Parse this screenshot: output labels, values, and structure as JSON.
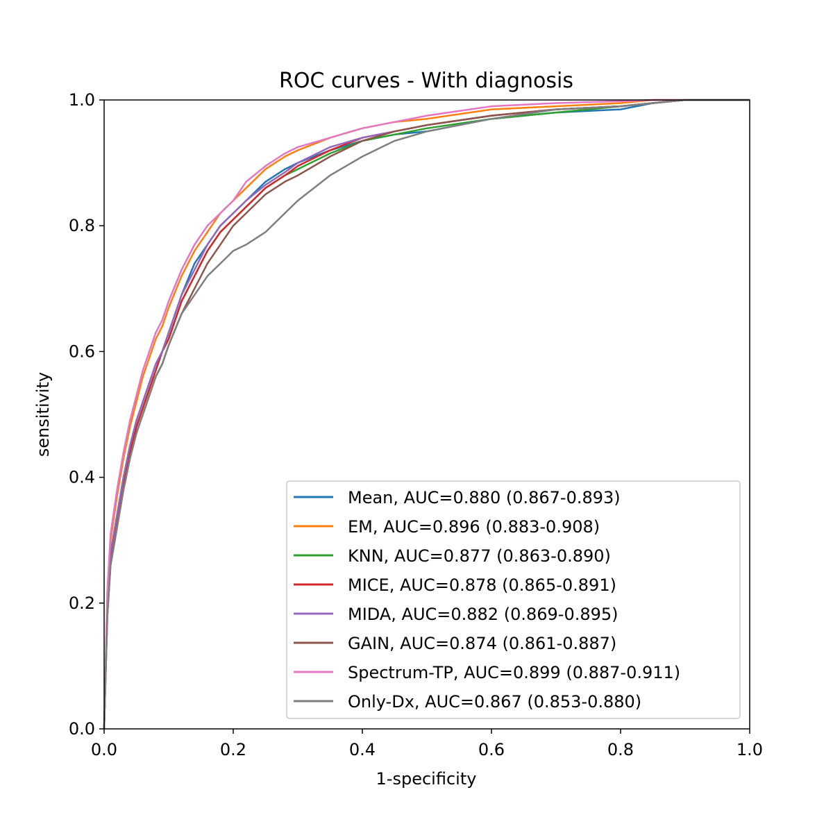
{
  "chart_data": {
    "type": "line",
    "title": "ROC curves - With diagnosis",
    "xlabel": "1-specificity",
    "ylabel": "sensitivity",
    "xlim": [
      0.0,
      1.0
    ],
    "ylim": [
      0.0,
      1.0
    ],
    "xticks": [
      "0.0",
      "0.2",
      "0.4",
      "0.6",
      "0.8",
      "1.0"
    ],
    "yticks": [
      "0.0",
      "0.2",
      "0.4",
      "0.6",
      "0.8",
      "1.0"
    ],
    "grid": false,
    "legend_position": "lower right",
    "series": [
      {
        "name": "Mean, AUC=0.880 (0.867-0.893)",
        "color": "#1f77b4",
        "x": [
          0.0,
          0.005,
          0.01,
          0.02,
          0.03,
          0.04,
          0.05,
          0.06,
          0.07,
          0.08,
          0.09,
          0.1,
          0.12,
          0.14,
          0.16,
          0.18,
          0.2,
          0.22,
          0.25,
          0.28,
          0.3,
          0.35,
          0.4,
          0.45,
          0.5,
          0.6,
          0.7,
          0.8,
          0.85,
          0.9,
          1.0
        ],
        "y": [
          0.0,
          0.2,
          0.28,
          0.34,
          0.4,
          0.45,
          0.49,
          0.52,
          0.55,
          0.58,
          0.6,
          0.63,
          0.69,
          0.74,
          0.77,
          0.8,
          0.82,
          0.84,
          0.87,
          0.89,
          0.9,
          0.92,
          0.935,
          0.945,
          0.95,
          0.97,
          0.98,
          0.985,
          0.995,
          1.0,
          1.0
        ]
      },
      {
        "name": "EM, AUC=0.896 (0.883-0.908)",
        "color": "#ff7f0e",
        "x": [
          0.0,
          0.005,
          0.01,
          0.02,
          0.03,
          0.04,
          0.05,
          0.06,
          0.07,
          0.08,
          0.09,
          0.1,
          0.12,
          0.14,
          0.16,
          0.18,
          0.2,
          0.22,
          0.25,
          0.28,
          0.3,
          0.35,
          0.4,
          0.45,
          0.5,
          0.6,
          0.7,
          0.8,
          0.85,
          0.9,
          1.0
        ],
        "y": [
          0.0,
          0.22,
          0.3,
          0.37,
          0.43,
          0.48,
          0.52,
          0.56,
          0.59,
          0.62,
          0.64,
          0.67,
          0.72,
          0.76,
          0.79,
          0.82,
          0.84,
          0.86,
          0.89,
          0.91,
          0.92,
          0.94,
          0.955,
          0.965,
          0.97,
          0.985,
          0.99,
          0.995,
          1.0,
          1.0,
          1.0
        ]
      },
      {
        "name": "KNN, AUC=0.877 (0.863-0.890)",
        "color": "#2ca02c",
        "x": [
          0.0,
          0.005,
          0.01,
          0.02,
          0.03,
          0.04,
          0.05,
          0.06,
          0.07,
          0.08,
          0.09,
          0.1,
          0.12,
          0.14,
          0.16,
          0.18,
          0.2,
          0.22,
          0.25,
          0.28,
          0.3,
          0.35,
          0.4,
          0.45,
          0.5,
          0.6,
          0.7,
          0.8,
          0.85,
          0.9,
          1.0
        ],
        "y": [
          0.0,
          0.19,
          0.27,
          0.33,
          0.39,
          0.44,
          0.48,
          0.51,
          0.54,
          0.57,
          0.6,
          0.62,
          0.68,
          0.72,
          0.76,
          0.79,
          0.81,
          0.83,
          0.86,
          0.88,
          0.89,
          0.915,
          0.935,
          0.945,
          0.955,
          0.97,
          0.98,
          0.99,
          0.995,
          1.0,
          1.0
        ]
      },
      {
        "name": "MICE, AUC=0.878 (0.865-0.891)",
        "color": "#d62728",
        "x": [
          0.0,
          0.005,
          0.01,
          0.02,
          0.03,
          0.04,
          0.05,
          0.06,
          0.07,
          0.08,
          0.09,
          0.1,
          0.12,
          0.14,
          0.16,
          0.18,
          0.2,
          0.22,
          0.25,
          0.28,
          0.3,
          0.35,
          0.4,
          0.45,
          0.5,
          0.6,
          0.7,
          0.8,
          0.85,
          0.9,
          1.0
        ],
        "y": [
          0.0,
          0.19,
          0.27,
          0.33,
          0.39,
          0.44,
          0.48,
          0.51,
          0.54,
          0.57,
          0.6,
          0.62,
          0.68,
          0.72,
          0.76,
          0.79,
          0.81,
          0.83,
          0.86,
          0.88,
          0.895,
          0.92,
          0.94,
          0.95,
          0.96,
          0.975,
          0.985,
          0.99,
          0.995,
          1.0,
          1.0
        ]
      },
      {
        "name": "MIDA, AUC=0.882 (0.869-0.895)",
        "color": "#9467bd",
        "x": [
          0.0,
          0.005,
          0.01,
          0.02,
          0.03,
          0.04,
          0.05,
          0.06,
          0.07,
          0.08,
          0.09,
          0.1,
          0.12,
          0.14,
          0.16,
          0.18,
          0.2,
          0.22,
          0.25,
          0.28,
          0.3,
          0.35,
          0.4,
          0.45,
          0.5,
          0.6,
          0.7,
          0.8,
          0.85,
          0.9,
          1.0
        ],
        "y": [
          0.0,
          0.2,
          0.28,
          0.34,
          0.4,
          0.45,
          0.49,
          0.52,
          0.55,
          0.58,
          0.6,
          0.63,
          0.69,
          0.73,
          0.77,
          0.8,
          0.82,
          0.84,
          0.865,
          0.885,
          0.9,
          0.925,
          0.94,
          0.95,
          0.96,
          0.975,
          0.985,
          0.99,
          0.995,
          1.0,
          1.0
        ]
      },
      {
        "name": "GAIN, AUC=0.874 (0.861-0.887)",
        "color": "#8c564b",
        "x": [
          0.0,
          0.005,
          0.01,
          0.02,
          0.03,
          0.04,
          0.05,
          0.06,
          0.07,
          0.08,
          0.09,
          0.1,
          0.12,
          0.14,
          0.16,
          0.18,
          0.2,
          0.22,
          0.25,
          0.28,
          0.3,
          0.35,
          0.4,
          0.45,
          0.5,
          0.6,
          0.7,
          0.8,
          0.85,
          0.9,
          1.0
        ],
        "y": [
          0.0,
          0.18,
          0.26,
          0.32,
          0.38,
          0.43,
          0.47,
          0.5,
          0.53,
          0.56,
          0.58,
          0.61,
          0.66,
          0.7,
          0.74,
          0.77,
          0.8,
          0.82,
          0.85,
          0.87,
          0.88,
          0.91,
          0.935,
          0.95,
          0.96,
          0.975,
          0.985,
          0.99,
          0.995,
          1.0,
          1.0
        ]
      },
      {
        "name": "Spectrum-TP, AUC=0.899 (0.887-0.911)",
        "color": "#e377c2",
        "x": [
          0.0,
          0.005,
          0.01,
          0.02,
          0.03,
          0.04,
          0.05,
          0.06,
          0.07,
          0.08,
          0.09,
          0.1,
          0.12,
          0.14,
          0.16,
          0.18,
          0.2,
          0.22,
          0.25,
          0.28,
          0.3,
          0.35,
          0.4,
          0.45,
          0.5,
          0.6,
          0.7,
          0.8,
          0.85,
          0.9,
          1.0
        ],
        "y": [
          0.0,
          0.22,
          0.31,
          0.38,
          0.44,
          0.49,
          0.53,
          0.57,
          0.6,
          0.63,
          0.65,
          0.68,
          0.73,
          0.77,
          0.8,
          0.82,
          0.84,
          0.87,
          0.895,
          0.915,
          0.925,
          0.94,
          0.955,
          0.965,
          0.975,
          0.99,
          0.995,
          0.998,
          1.0,
          1.0,
          1.0
        ]
      },
      {
        "name": "Only-Dx, AUC=0.867 (0.853-0.880)",
        "color": "#7f7f7f",
        "x": [
          0.0,
          0.005,
          0.01,
          0.02,
          0.03,
          0.04,
          0.05,
          0.06,
          0.07,
          0.08,
          0.09,
          0.1,
          0.12,
          0.14,
          0.16,
          0.18,
          0.2,
          0.22,
          0.25,
          0.28,
          0.3,
          0.35,
          0.4,
          0.45,
          0.5,
          0.6,
          0.7,
          0.8,
          0.85,
          0.9,
          1.0
        ],
        "y": [
          0.0,
          0.18,
          0.26,
          0.32,
          0.38,
          0.43,
          0.47,
          0.5,
          0.53,
          0.56,
          0.58,
          0.61,
          0.66,
          0.69,
          0.72,
          0.74,
          0.76,
          0.77,
          0.79,
          0.82,
          0.84,
          0.88,
          0.91,
          0.935,
          0.95,
          0.97,
          0.985,
          0.99,
          0.995,
          1.0,
          1.0
        ]
      }
    ]
  }
}
